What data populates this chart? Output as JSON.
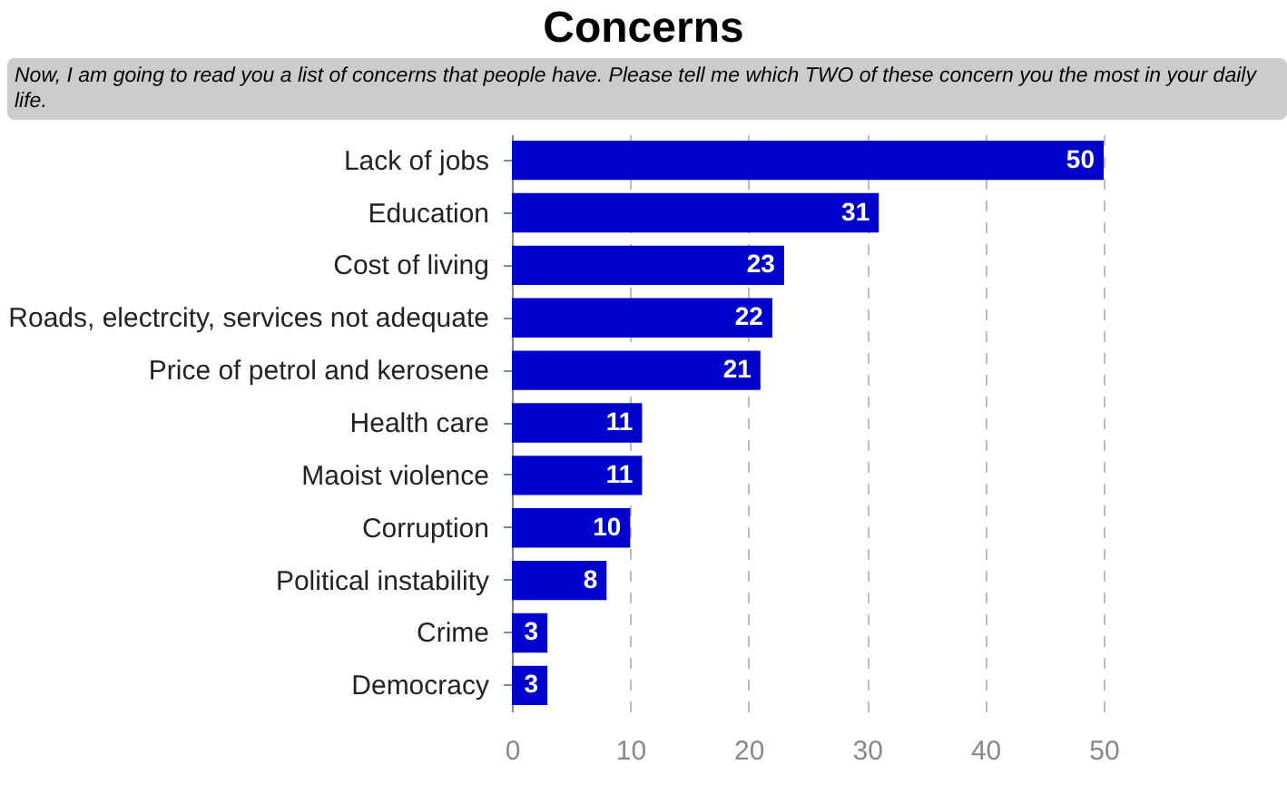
{
  "chart_data": {
    "type": "bar",
    "orientation": "horizontal",
    "title": "Concerns",
    "subtitle": "Now, I am going to read you a list of concerns that people have.  Please tell me which TWO of these concern you the most in your daily life.",
    "categories": [
      "Lack of jobs",
      "Education",
      "Cost of living",
      "Roads, electrcity, services not adequate",
      "Price of petrol and kerosene",
      "Health care",
      "Maoist violence",
      "Corruption",
      "Political instability",
      "Crime",
      "Democracy"
    ],
    "values": [
      50,
      31,
      23,
      22,
      21,
      11,
      11,
      10,
      8,
      3,
      3
    ],
    "color": "#0000cc",
    "xlim": [
      0,
      50
    ],
    "xticks": [
      0,
      10,
      20,
      30,
      40,
      50
    ],
    "grid": "x",
    "data_labels": true
  }
}
